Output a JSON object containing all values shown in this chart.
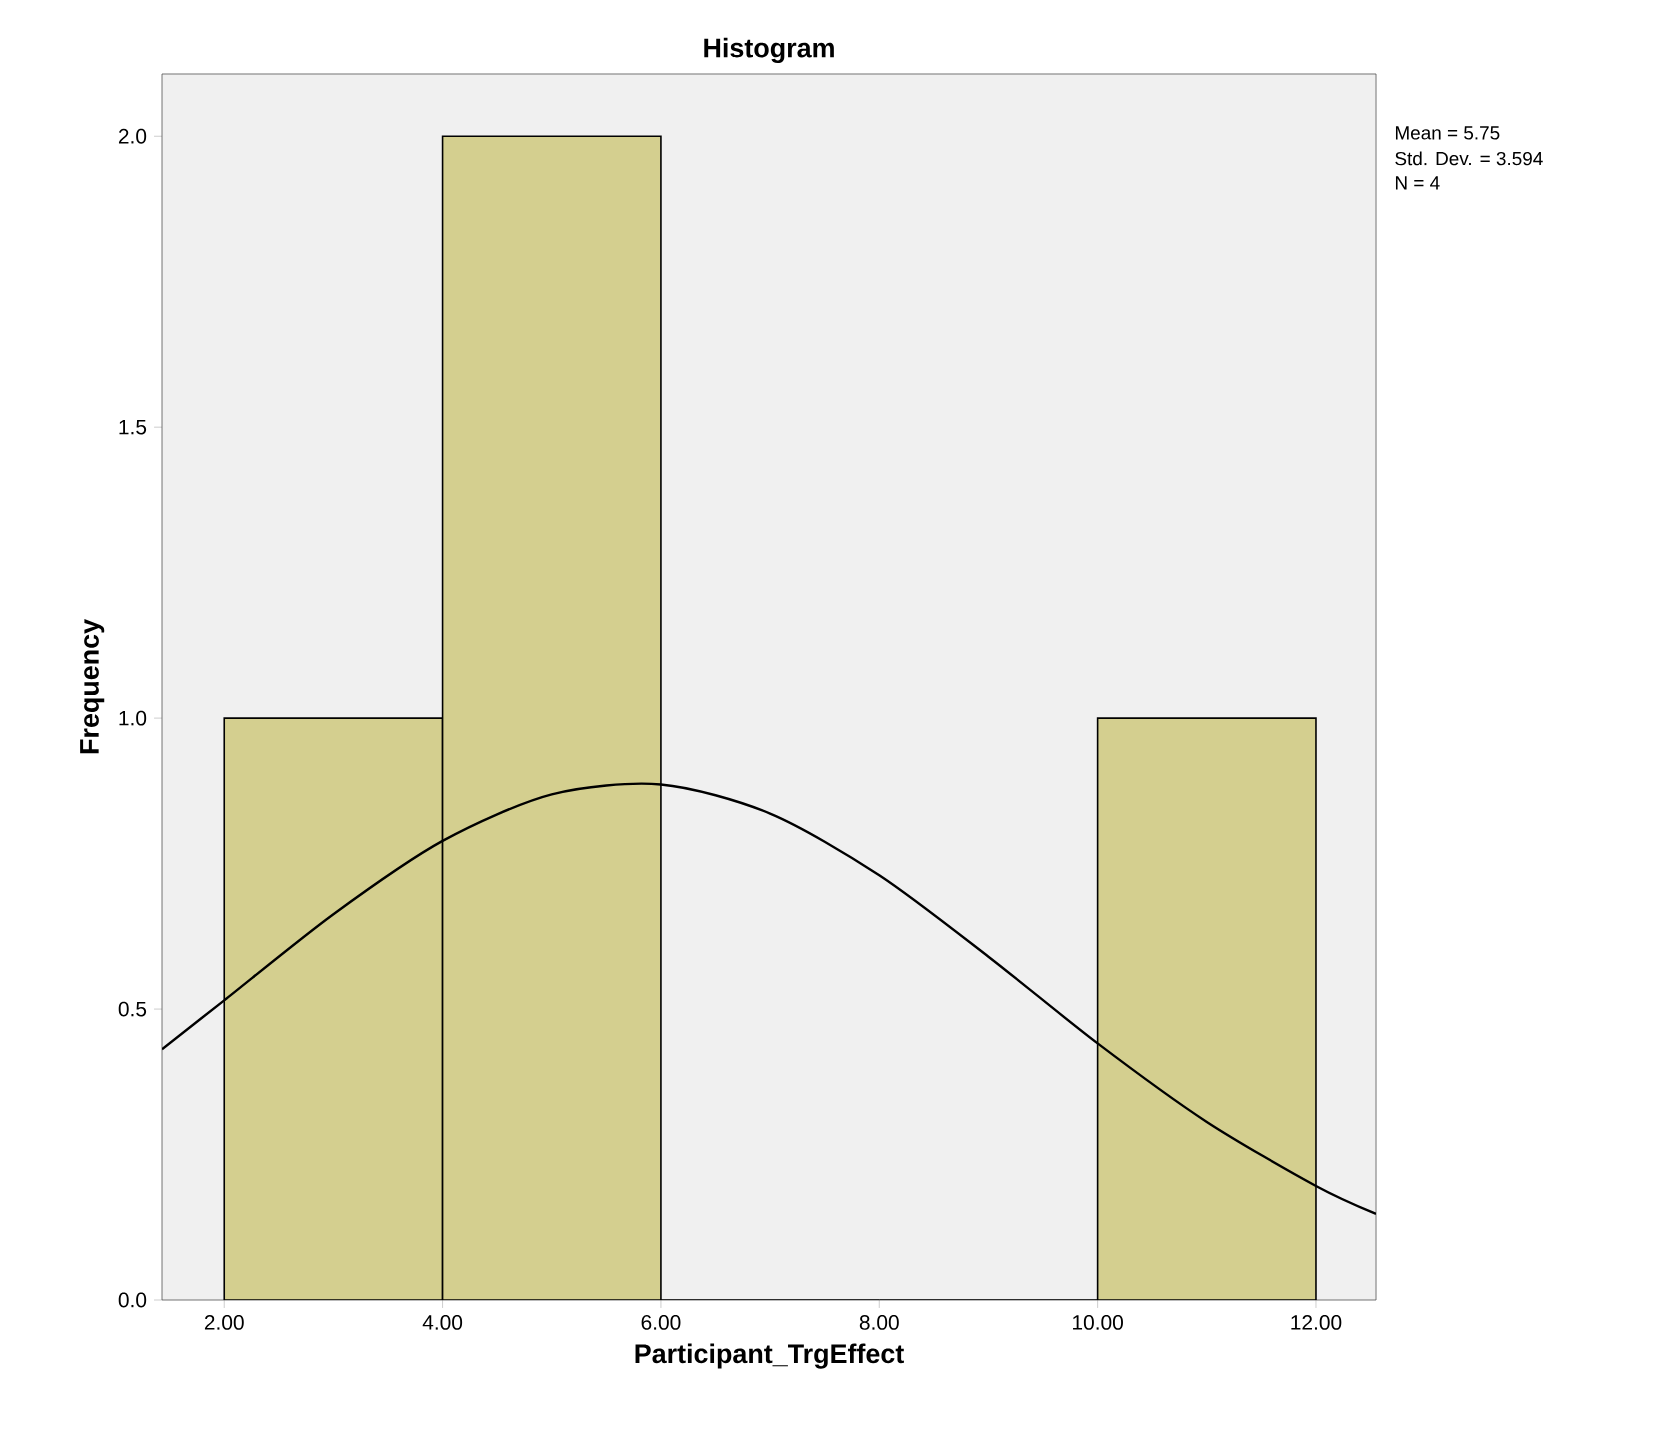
{
  "chart_data": {
    "type": "histogram",
    "title": "Histogram",
    "xlabel": "Participant_TrgEffect",
    "ylabel": "Frequency",
    "series": [
      {
        "bins": [
          2,
          4,
          6,
          8,
          10,
          12
        ],
        "values": [
          1,
          2,
          0,
          0,
          1
        ],
        "color": "#d4cf8f"
      },
      {
        "type": "line",
        "x": [
          1.43,
          2,
          3,
          4,
          5,
          6,
          7,
          8,
          9,
          10,
          11,
          12,
          12.55
        ],
        "values": [
          0.431,
          0.515,
          0.663,
          0.789,
          0.869,
          0.886,
          0.836,
          0.73,
          0.59,
          0.441,
          0.306,
          0.196,
          0.148
        ],
        "color": "#000000"
      }
    ],
    "xlim": [
      1.43,
      12.55
    ],
    "ylim": [
      0,
      2.107
    ],
    "xticks": [
      {
        "value": 2,
        "label": "2.00"
      },
      {
        "value": 4,
        "label": "4.00"
      },
      {
        "value": 6,
        "label": "6.00"
      },
      {
        "value": 8,
        "label": "8.00"
      },
      {
        "value": 10,
        "label": "10.00"
      },
      {
        "value": 12,
        "label": "12.00"
      }
    ],
    "yticks": [
      {
        "value": 0,
        "label": "0.0"
      },
      {
        "value": 0.5,
        "label": "0.5"
      },
      {
        "value": 1,
        "label": "1.0"
      },
      {
        "value": 1.5,
        "label": "1.5"
      },
      {
        "value": 2,
        "label": "2.0"
      }
    ],
    "annotations": [
      "Mean = 5.75",
      "Std. Dev. = 3.594",
      "N = 4"
    ],
    "grid": false
  }
}
